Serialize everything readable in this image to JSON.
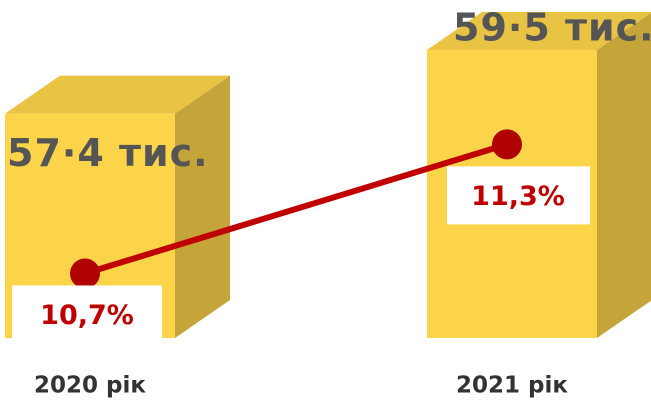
{
  "chart_data": {
    "type": "combo",
    "categories": [
      "2020 рік",
      "2021 рік"
    ],
    "series": [
      {
        "type": "bar",
        "color": "#fcd44a",
        "values": [
          57.4,
          59.5
        ],
        "value_labels": [
          "57·4 тис.",
          "59·5 тис."
        ]
      },
      {
        "type": "line",
        "axis": "y2",
        "color": "#c00000",
        "values": [
          10.7,
          11.3
        ],
        "value_labels": [
          "10,7%",
          "11,3%"
        ]
      }
    ],
    "ylim": [
      50,
      61
    ],
    "y2lim": [
      10.4,
      11.95
    ]
  }
}
